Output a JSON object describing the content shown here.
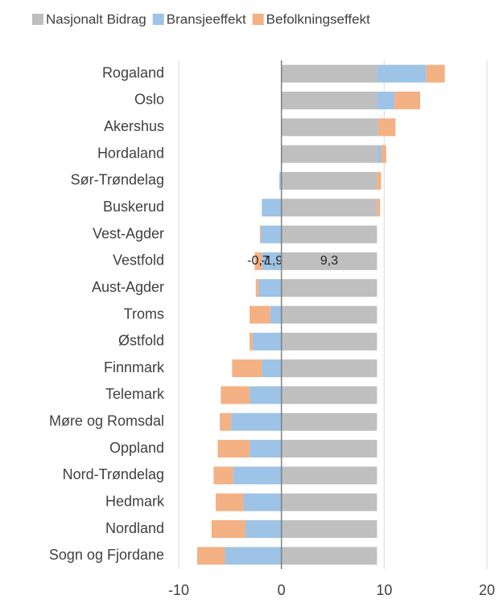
{
  "chart_data": {
    "type": "bar",
    "orientation": "horizontal",
    "stacked": true,
    "categories": [
      "Rogaland",
      "Oslo",
      "Akershus",
      "Hordaland",
      "Sør-Trøndelag",
      "Buskerud",
      "Vest-Agder",
      "Vestfold",
      "Aust-Agder",
      "Troms",
      "Østfold",
      "Finnmark",
      "Telemark",
      "Møre og Romsdal",
      "Oppland",
      "Nord-Trøndelag",
      "Hedmark",
      "Nordland",
      "Sogn og Fjordane"
    ],
    "series": [
      {
        "name": "Nasjonalt Bidrag",
        "color": "#bfbfbf",
        "values": [
          9.3,
          9.3,
          9.3,
          9.3,
          9.3,
          9.3,
          9.3,
          9.3,
          9.3,
          9.3,
          9.3,
          9.3,
          9.3,
          9.3,
          9.3,
          9.3,
          9.3,
          9.3,
          9.3
        ],
        "value_labels": [
          null,
          null,
          null,
          null,
          null,
          null,
          null,
          "9,3",
          null,
          null,
          null,
          null,
          null,
          null,
          null,
          null,
          null,
          null,
          null
        ]
      },
      {
        "name": "Bransjeeffekt",
        "color": "#9dc3e6",
        "values": [
          4.8,
          1.7,
          0.1,
          0.4,
          -0.2,
          -1.9,
          -2.0,
          -1.9,
          -2.2,
          -1.1,
          -2.8,
          -1.9,
          -3.1,
          -4.9,
          -3.1,
          -4.7,
          -3.7,
          -3.5,
          -5.5
        ],
        "value_labels": [
          null,
          null,
          null,
          null,
          null,
          null,
          null,
          "-1,9",
          null,
          null,
          null,
          null,
          null,
          null,
          null,
          null,
          null,
          null,
          null
        ]
      },
      {
        "name": "Befolkningseffekt",
        "color": "#f4b183",
        "values": [
          1.8,
          2.5,
          1.7,
          0.5,
          0.4,
          0.3,
          -0.1,
          -0.7,
          -0.3,
          -2.0,
          -0.3,
          -2.9,
          -2.8,
          -1.1,
          -3.1,
          -1.9,
          -2.7,
          -3.3,
          -2.7
        ],
        "value_labels": [
          null,
          null,
          null,
          null,
          null,
          null,
          null,
          "-0,7",
          null,
          null,
          null,
          null,
          null,
          null,
          null,
          null,
          null,
          null,
          null
        ]
      }
    ],
    "xlim": [
      -10,
      20
    ],
    "xticks": [
      -10,
      0,
      10,
      20
    ],
    "grid": true,
    "legend": "top"
  }
}
